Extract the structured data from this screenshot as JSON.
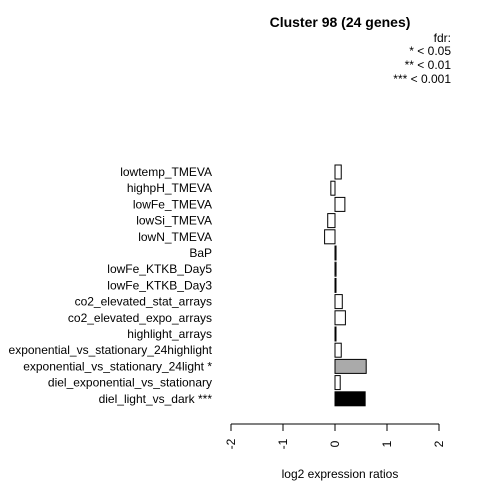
{
  "chart_data": {
    "type": "bar",
    "orientation": "horizontal",
    "title": "Cluster 98 (24 genes)",
    "xlabel": "log2 expression ratios",
    "ylabel": "",
    "xlim": [
      -2,
      2
    ],
    "xticks": [
      "-2",
      "-1",
      "0",
      "1",
      "2"
    ],
    "legend": {
      "title": "fdr:",
      "entries": [
        "* < 0.05",
        "** < 0.01",
        "*** < 0.001"
      ],
      "placement": "top-right"
    },
    "categories": [
      "lowtemp_TMEVA",
      "highpH_TMEVA",
      "lowFe_TMEVA",
      "lowSi_TMEVA",
      "lowN_TMEVA",
      "BaP",
      "lowFe_KTKB_Day5",
      "lowFe_KTKB_Day3",
      "co2_elevated_stat_arrays",
      "co2_elevated_expo_arrays",
      "highlight_arrays",
      "exponential_vs_stationary_24highlight",
      "exponential_vs_stationary_24light *",
      "diel_exponential_vs_stationary",
      "diel_light_vs_dark ***"
    ],
    "values": [
      0.12,
      -0.08,
      0.19,
      -0.14,
      -0.2,
      0.02,
      0.02,
      0.01,
      0.14,
      0.2,
      0.0,
      0.12,
      0.6,
      0.1,
      0.58
    ],
    "bar_colors": [
      "#ffffff",
      "#ffffff",
      "#ffffff",
      "#ffffff",
      "#ffffff",
      "#ffffff",
      "#ffffff",
      "#ffffff",
      "#ffffff",
      "#ffffff",
      "#ffffff",
      "#ffffff",
      "#aaaaaa",
      "#ffffff",
      "#000000"
    ],
    "bar_outline": "#000000",
    "grid": false
  }
}
